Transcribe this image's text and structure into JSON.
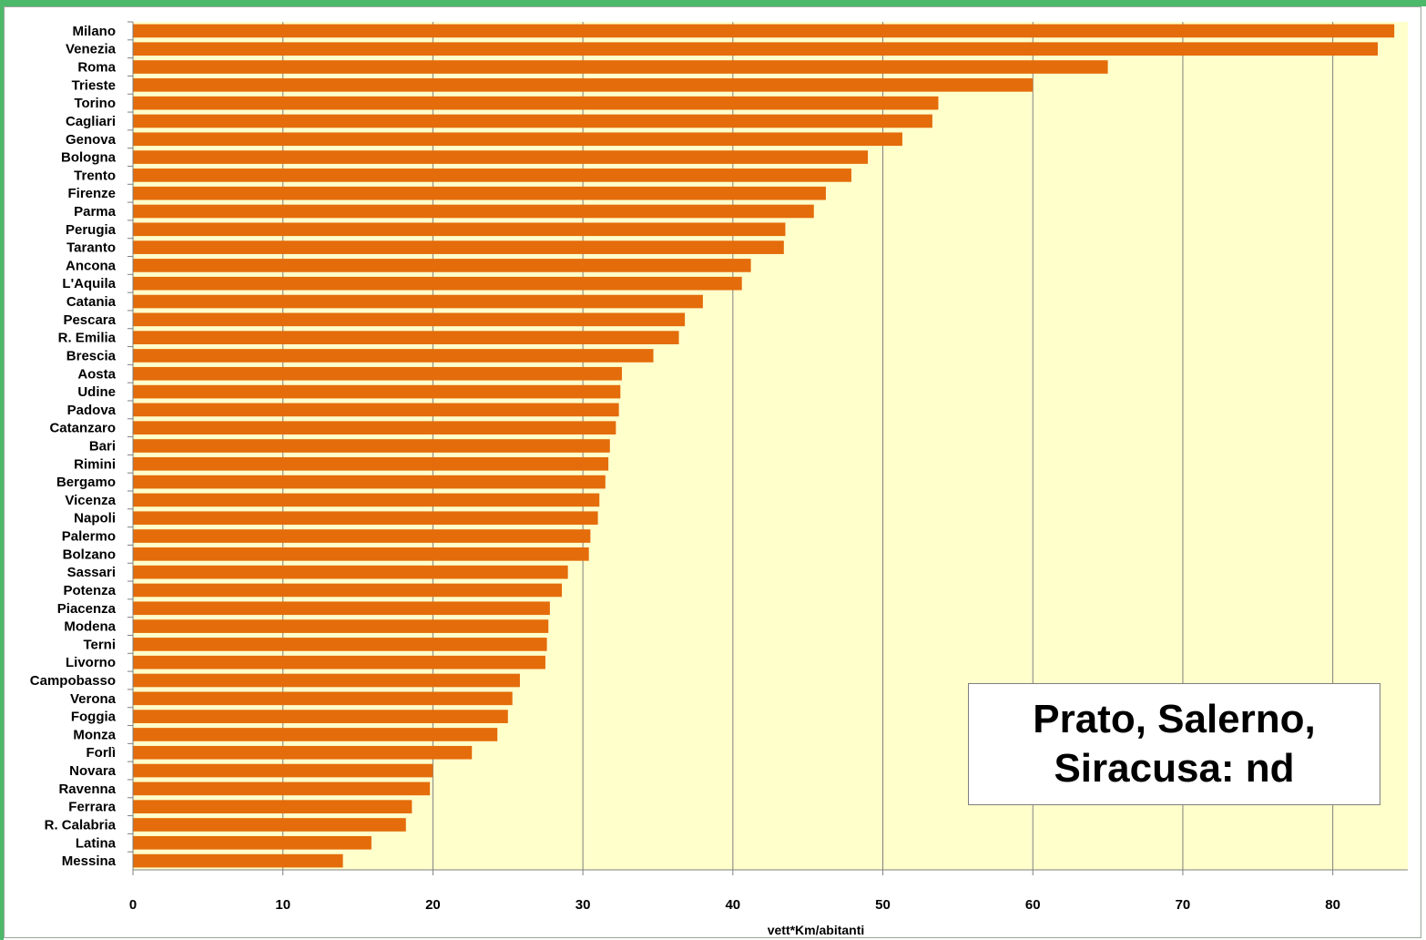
{
  "colors": {
    "bar": "#e46c0a",
    "plot_bg": "#ffffcc",
    "frame_green": "#4cb86a",
    "grid": "#808080"
  },
  "note": {
    "line1": "Prato, Salerno,",
    "line2": "Siracusa: nd"
  },
  "chart_data": {
    "type": "bar",
    "orientation": "horizontal",
    "title": "",
    "xlabel": "vett*Km/abitanti",
    "ylabel": "",
    "xlim": [
      0,
      85
    ],
    "xticks": [
      0,
      10,
      20,
      30,
      40,
      50,
      60,
      70,
      80
    ],
    "grid": "vertical",
    "categories": [
      "Milano",
      "Venezia",
      "Roma",
      "Trieste",
      "Torino",
      "Cagliari",
      "Genova",
      "Bologna",
      "Trento",
      "Firenze",
      "Parma",
      "Perugia",
      "Taranto",
      "Ancona",
      "L'Aquila",
      "Catania",
      "Pescara",
      "R. Emilia",
      "Brescia",
      "Aosta",
      "Udine",
      "Padova",
      "Catanzaro",
      "Bari",
      "Rimini",
      "Bergamo",
      "Vicenza",
      "Napoli",
      "Palermo",
      "Bolzano",
      "Sassari",
      "Potenza",
      "Piacenza",
      "Modena",
      "Terni",
      "Livorno",
      "Campobasso",
      "Verona",
      "Foggia",
      "Monza",
      "Forlì",
      "Novara",
      "Ravenna",
      "Ferrara",
      "R. Calabria",
      "Latina",
      "Messina"
    ],
    "values": [
      84.1,
      83.0,
      65.0,
      60.0,
      53.7,
      53.3,
      51.3,
      49.0,
      47.9,
      46.2,
      45.4,
      43.5,
      43.4,
      41.2,
      40.6,
      38.0,
      36.8,
      36.4,
      34.7,
      32.6,
      32.5,
      32.4,
      32.2,
      31.8,
      31.7,
      31.5,
      31.1,
      31.0,
      30.5,
      30.4,
      29.0,
      28.6,
      27.8,
      27.7,
      27.6,
      27.5,
      25.8,
      25.3,
      25.0,
      24.3,
      22.6,
      20.0,
      19.8,
      18.6,
      18.2,
      15.9,
      14.0
    ]
  }
}
